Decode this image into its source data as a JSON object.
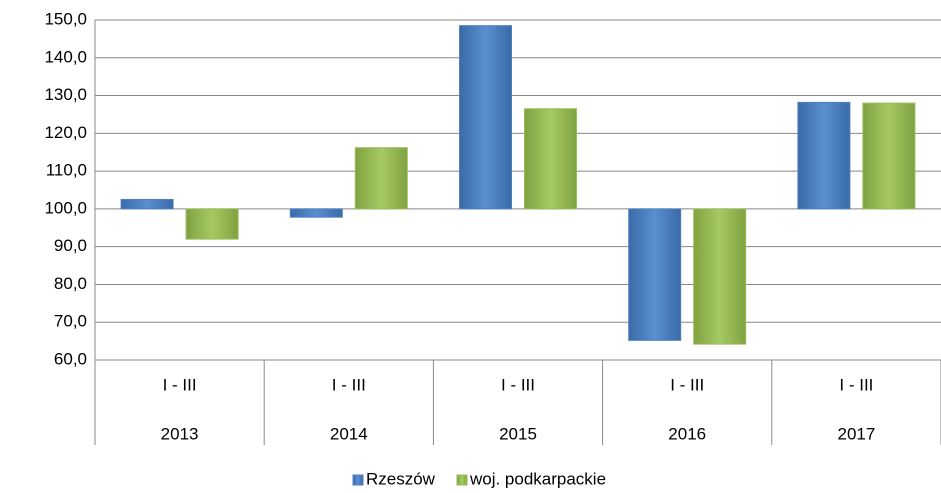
{
  "chart_data": {
    "type": "bar",
    "categories": [
      "2013",
      "2014",
      "2015",
      "2016",
      "2017"
    ],
    "period_labels": [
      "I - III",
      "I - III",
      "I - III",
      "I - III",
      "I - III"
    ],
    "series": [
      {
        "name": "Rzeszów",
        "color": "#4f81bd",
        "values": [
          102.5,
          97.8,
          148.5,
          65.2,
          128.2
        ]
      },
      {
        "name": "woj. podkarpackie",
        "color": "#9bbb59",
        "values": [
          92.0,
          116.2,
          126.5,
          64.2,
          128.0
        ]
      }
    ],
    "bar_base": 100,
    "ylim": [
      60,
      150
    ],
    "yticks": [
      {
        "value": 60,
        "label": "60,0"
      },
      {
        "value": 70,
        "label": "70,0"
      },
      {
        "value": 80,
        "label": "80,0"
      },
      {
        "value": 90,
        "label": "90,0"
      },
      {
        "value": 100,
        "label": "100,0"
      },
      {
        "value": 110,
        "label": "110,0"
      },
      {
        "value": 120,
        "label": "120,0"
      },
      {
        "value": 130,
        "label": "130,0"
      },
      {
        "value": 140,
        "label": "140,0"
      },
      {
        "value": 150,
        "label": "150,0"
      }
    ],
    "grid": true,
    "legend": "bottom"
  }
}
